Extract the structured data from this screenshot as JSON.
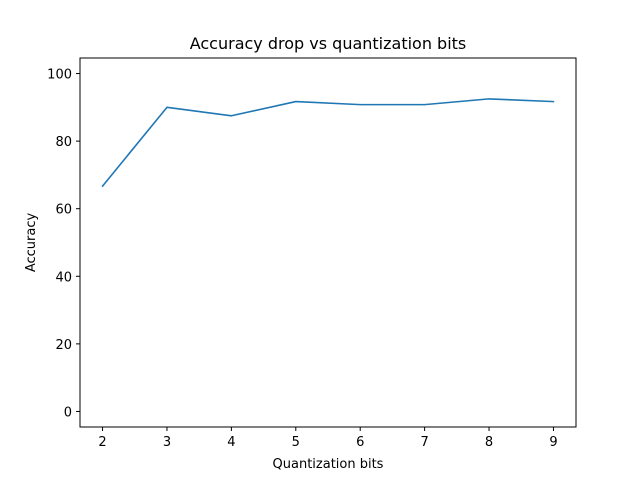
{
  "chart_data": {
    "type": "line",
    "title": "Accuracy drop vs quantization bits",
    "xlabel": "Quantization bits",
    "ylabel": "Accuracy",
    "x": [
      2,
      3,
      4,
      5,
      6,
      7,
      8,
      9
    ],
    "series": [
      {
        "values": [
          66.7,
          90.0,
          87.5,
          91.7,
          90.8,
          90.8,
          92.5,
          91.7
        ],
        "color": "#1f77b4"
      }
    ],
    "xticks": [
      2,
      3,
      4,
      5,
      6,
      7,
      8,
      9
    ],
    "yticks": [
      0,
      20,
      40,
      60,
      80,
      100
    ],
    "xlim": [
      1.65,
      9.35
    ],
    "ylim": [
      -4.6,
      104.6
    ],
    "grid": false,
    "legend": "none"
  }
}
